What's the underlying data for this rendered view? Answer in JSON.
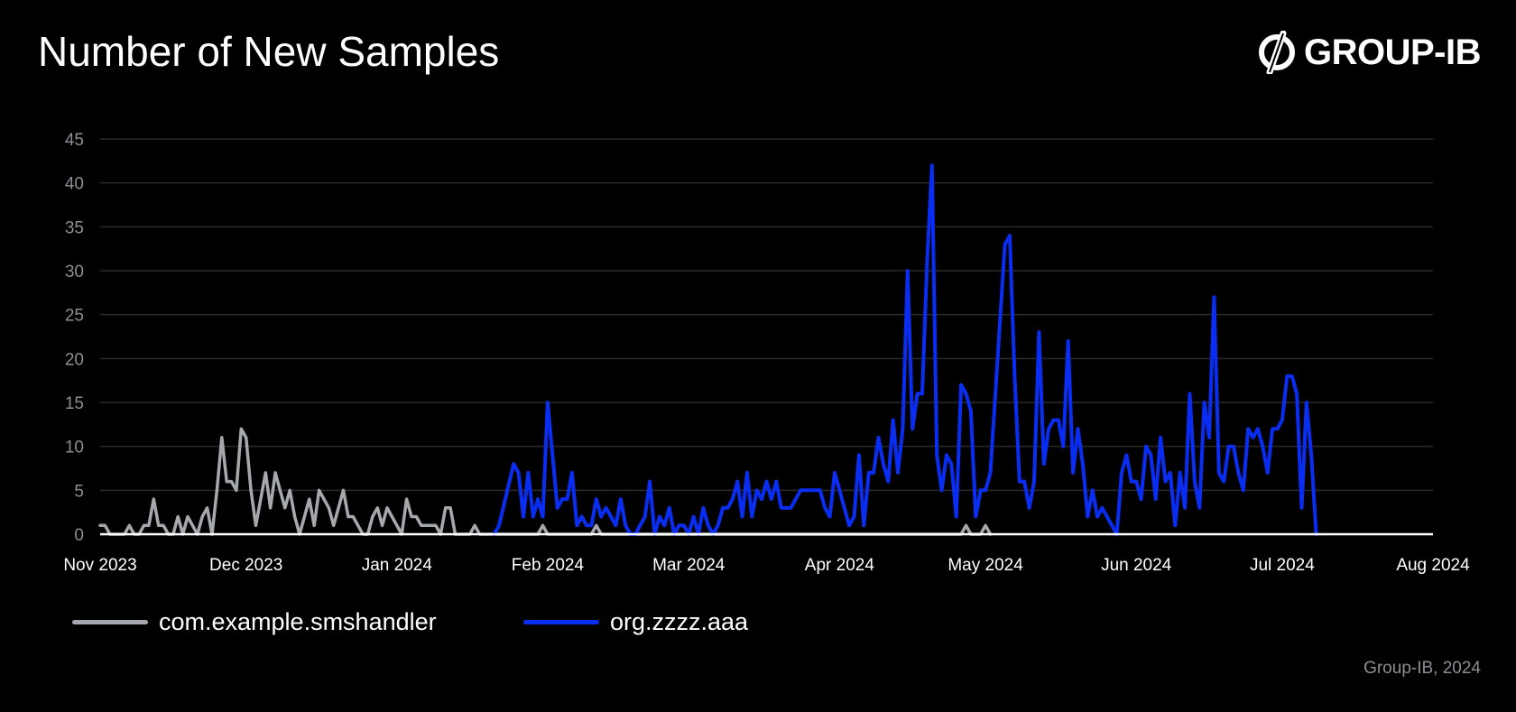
{
  "title": "Number of New Samples",
  "brand": {
    "name": "GROUP-IB",
    "icon": "group-ib-logo-icon"
  },
  "credit": "Group-IB, 2024",
  "colors": {
    "background": "#000000",
    "grid": "#2a2a2a",
    "axis": "#ffffff",
    "tick_text": "#8c8f93"
  },
  "chart_data": {
    "type": "line",
    "title": "Number of New Samples",
    "xlabel": "",
    "ylabel": "",
    "x_start": "2023-11-01",
    "x_end": "2024-08-01",
    "ylim": [
      0,
      45
    ],
    "yticks": [
      0,
      5,
      10,
      15,
      20,
      25,
      30,
      35,
      40,
      45
    ],
    "xticks": [
      {
        "label": "Nov 2023",
        "date": "2023-11-01"
      },
      {
        "label": "Dec 2023",
        "date": "2023-12-01"
      },
      {
        "label": "Jan 2024",
        "date": "2024-01-01"
      },
      {
        "label": "Feb 2024",
        "date": "2024-02-01"
      },
      {
        "label": "Mar 2024",
        "date": "2024-03-01"
      },
      {
        "label": "Apr 2024",
        "date": "2024-04-01"
      },
      {
        "label": "May 2024",
        "date": "2024-05-01"
      },
      {
        "label": "Jun 2024",
        "date": "2024-06-01"
      },
      {
        "label": "Jul 2024",
        "date": "2024-07-01"
      },
      {
        "label": "Aug 2024",
        "date": "2024-08-01"
      }
    ],
    "grid": true,
    "legend": "bottom-left",
    "series": [
      {
        "name": "com.example.smshandler",
        "color": "#a5a8ad",
        "points": [
          [
            "2023-11-01",
            1
          ],
          [
            "2023-11-02",
            1
          ],
          [
            "2023-11-03",
            0
          ],
          [
            "2023-11-06",
            0
          ],
          [
            "2023-11-07",
            1
          ],
          [
            "2023-11-08",
            0
          ],
          [
            "2023-11-09",
            0
          ],
          [
            "2023-11-10",
            1
          ],
          [
            "2023-11-11",
            1
          ],
          [
            "2023-11-12",
            4
          ],
          [
            "2023-11-13",
            1
          ],
          [
            "2023-11-14",
            1
          ],
          [
            "2023-11-15",
            0
          ],
          [
            "2023-11-16",
            0
          ],
          [
            "2023-11-17",
            2
          ],
          [
            "2023-11-18",
            0
          ],
          [
            "2023-11-19",
            2
          ],
          [
            "2023-11-20",
            1
          ],
          [
            "2023-11-21",
            0
          ],
          [
            "2023-11-22",
            2
          ],
          [
            "2023-11-23",
            3
          ],
          [
            "2023-11-24",
            0
          ],
          [
            "2023-11-25",
            5
          ],
          [
            "2023-11-26",
            11
          ],
          [
            "2023-11-27",
            6
          ],
          [
            "2023-11-28",
            6
          ],
          [
            "2023-11-29",
            5
          ],
          [
            "2023-11-30",
            12
          ],
          [
            "2023-12-01",
            11
          ],
          [
            "2023-12-02",
            5
          ],
          [
            "2023-12-03",
            1
          ],
          [
            "2023-12-04",
            4
          ],
          [
            "2023-12-05",
            7
          ],
          [
            "2023-12-06",
            3
          ],
          [
            "2023-12-07",
            7
          ],
          [
            "2023-12-08",
            5
          ],
          [
            "2023-12-09",
            3
          ],
          [
            "2023-12-10",
            5
          ],
          [
            "2023-12-11",
            2
          ],
          [
            "2023-12-12",
            0
          ],
          [
            "2023-12-13",
            2
          ],
          [
            "2023-12-14",
            4
          ],
          [
            "2023-12-15",
            1
          ],
          [
            "2023-12-16",
            5
          ],
          [
            "2023-12-17",
            4
          ],
          [
            "2023-12-18",
            3
          ],
          [
            "2023-12-19",
            1
          ],
          [
            "2023-12-20",
            3
          ],
          [
            "2023-12-21",
            5
          ],
          [
            "2023-12-22",
            2
          ],
          [
            "2023-12-23",
            2
          ],
          [
            "2023-12-24",
            1
          ],
          [
            "2023-12-25",
            0
          ],
          [
            "2023-12-26",
            0
          ],
          [
            "2023-12-27",
            2
          ],
          [
            "2023-12-28",
            3
          ],
          [
            "2023-12-29",
            1
          ],
          [
            "2023-12-30",
            3
          ],
          [
            "2023-12-31",
            2
          ],
          [
            "2024-01-01",
            1
          ],
          [
            "2024-01-02",
            0
          ],
          [
            "2024-01-03",
            4
          ],
          [
            "2024-01-04",
            2
          ],
          [
            "2024-01-05",
            2
          ],
          [
            "2024-01-06",
            1
          ],
          [
            "2024-01-07",
            1
          ],
          [
            "2024-01-08",
            1
          ],
          [
            "2024-01-09",
            1
          ],
          [
            "2024-01-10",
            0
          ],
          [
            "2024-01-11",
            3
          ],
          [
            "2024-01-12",
            3
          ],
          [
            "2024-01-13",
            0
          ],
          [
            "2024-01-15",
            0
          ],
          [
            "2024-01-16",
            0
          ],
          [
            "2024-01-17",
            1
          ],
          [
            "2024-01-18",
            0
          ],
          [
            "2024-01-30",
            0
          ],
          [
            "2024-01-31",
            1
          ],
          [
            "2024-02-01",
            0
          ],
          [
            "2024-02-10",
            0
          ],
          [
            "2024-02-11",
            1
          ],
          [
            "2024-02-12",
            0
          ],
          [
            "2024-04-26",
            0
          ],
          [
            "2024-04-27",
            1
          ],
          [
            "2024-04-28",
            0
          ],
          [
            "2024-04-30",
            0
          ],
          [
            "2024-05-01",
            1
          ],
          [
            "2024-05-02",
            0
          ]
        ]
      },
      {
        "name": "org.zzzz.aaa",
        "color": "#0a2df2",
        "points": [
          [
            "2024-01-21",
            0
          ],
          [
            "2024-01-22",
            1
          ],
          [
            "2024-01-25",
            8
          ],
          [
            "2024-01-26",
            7
          ],
          [
            "2024-01-27",
            2
          ],
          [
            "2024-01-28",
            7
          ],
          [
            "2024-01-29",
            2
          ],
          [
            "2024-01-30",
            4
          ],
          [
            "2024-01-31",
            2
          ],
          [
            "2024-02-01",
            15
          ],
          [
            "2024-02-02",
            9
          ],
          [
            "2024-02-03",
            3
          ],
          [
            "2024-02-04",
            4
          ],
          [
            "2024-02-05",
            4
          ],
          [
            "2024-02-06",
            7
          ],
          [
            "2024-02-07",
            1
          ],
          [
            "2024-02-08",
            2
          ],
          [
            "2024-02-09",
            1
          ],
          [
            "2024-02-10",
            1
          ],
          [
            "2024-02-11",
            4
          ],
          [
            "2024-02-12",
            2
          ],
          [
            "2024-02-13",
            3
          ],
          [
            "2024-02-14",
            2
          ],
          [
            "2024-02-15",
            1
          ],
          [
            "2024-02-16",
            4
          ],
          [
            "2024-02-17",
            1
          ],
          [
            "2024-02-18",
            0
          ],
          [
            "2024-02-19",
            0
          ],
          [
            "2024-02-20",
            1
          ],
          [
            "2024-02-21",
            2
          ],
          [
            "2024-02-22",
            6
          ],
          [
            "2024-02-23",
            0
          ],
          [
            "2024-02-24",
            2
          ],
          [
            "2024-02-25",
            1
          ],
          [
            "2024-02-26",
            3
          ],
          [
            "2024-02-27",
            0
          ],
          [
            "2024-02-28",
            1
          ],
          [
            "2024-02-29",
            1
          ],
          [
            "2024-03-01",
            0
          ],
          [
            "2024-03-02",
            2
          ],
          [
            "2024-03-03",
            0
          ],
          [
            "2024-03-04",
            3
          ],
          [
            "2024-03-05",
            1
          ],
          [
            "2024-03-06",
            0
          ],
          [
            "2024-03-07",
            1
          ],
          [
            "2024-03-08",
            3
          ],
          [
            "2024-03-09",
            3
          ],
          [
            "2024-03-10",
            4
          ],
          [
            "2024-03-11",
            6
          ],
          [
            "2024-03-12",
            2
          ],
          [
            "2024-03-13",
            7
          ],
          [
            "2024-03-14",
            2
          ],
          [
            "2024-03-15",
            5
          ],
          [
            "2024-03-16",
            4
          ],
          [
            "2024-03-17",
            6
          ],
          [
            "2024-03-18",
            4
          ],
          [
            "2024-03-19",
            6
          ],
          [
            "2024-03-20",
            3
          ],
          [
            "2024-03-21",
            3
          ],
          [
            "2024-03-22",
            3
          ],
          [
            "2024-03-23",
            4
          ],
          [
            "2024-03-24",
            5
          ],
          [
            "2024-03-25",
            5
          ],
          [
            "2024-03-26",
            5
          ],
          [
            "2024-03-27",
            5
          ],
          [
            "2024-03-28",
            5
          ],
          [
            "2024-03-29",
            3
          ],
          [
            "2024-03-30",
            2
          ],
          [
            "2024-03-31",
            7
          ],
          [
            "2024-04-01",
            5
          ],
          [
            "2024-04-02",
            3
          ],
          [
            "2024-04-03",
            1
          ],
          [
            "2024-04-04",
            2
          ],
          [
            "2024-04-05",
            9
          ],
          [
            "2024-04-06",
            1
          ],
          [
            "2024-04-07",
            7
          ],
          [
            "2024-04-08",
            7
          ],
          [
            "2024-04-09",
            11
          ],
          [
            "2024-04-10",
            8
          ],
          [
            "2024-04-11",
            6
          ],
          [
            "2024-04-12",
            13
          ],
          [
            "2024-04-13",
            7
          ],
          [
            "2024-04-14",
            12
          ],
          [
            "2024-04-15",
            30
          ],
          [
            "2024-04-16",
            12
          ],
          [
            "2024-04-17",
            16
          ],
          [
            "2024-04-18",
            16
          ],
          [
            "2024-04-19",
            31
          ],
          [
            "2024-04-20",
            42
          ],
          [
            "2024-04-21",
            9
          ],
          [
            "2024-04-22",
            5
          ],
          [
            "2024-04-23",
            9
          ],
          [
            "2024-04-24",
            8
          ],
          [
            "2024-04-25",
            2
          ],
          [
            "2024-04-26",
            17
          ],
          [
            "2024-04-27",
            16
          ],
          [
            "2024-04-28",
            14
          ],
          [
            "2024-04-29",
            2
          ],
          [
            "2024-04-30",
            5
          ],
          [
            "2024-05-01",
            5
          ],
          [
            "2024-05-02",
            7
          ],
          [
            "2024-05-05",
            33
          ],
          [
            "2024-05-06",
            34
          ],
          [
            "2024-05-07",
            18
          ],
          [
            "2024-05-08",
            6
          ],
          [
            "2024-05-09",
            6
          ],
          [
            "2024-05-10",
            3
          ],
          [
            "2024-05-11",
            6
          ],
          [
            "2024-05-12",
            23
          ],
          [
            "2024-05-13",
            8
          ],
          [
            "2024-05-14",
            12
          ],
          [
            "2024-05-15",
            13
          ],
          [
            "2024-05-16",
            13
          ],
          [
            "2024-05-17",
            10
          ],
          [
            "2024-05-18",
            22
          ],
          [
            "2024-05-19",
            7
          ],
          [
            "2024-05-20",
            12
          ],
          [
            "2024-05-21",
            8
          ],
          [
            "2024-05-22",
            2
          ],
          [
            "2024-05-23",
            5
          ],
          [
            "2024-05-24",
            2
          ],
          [
            "2024-05-25",
            3
          ],
          [
            "2024-05-26",
            2
          ],
          [
            "2024-05-27",
            1
          ],
          [
            "2024-05-28",
            0
          ],
          [
            "2024-05-29",
            7
          ],
          [
            "2024-05-30",
            9
          ],
          [
            "2024-05-31",
            6
          ],
          [
            "2024-06-01",
            6
          ],
          [
            "2024-06-02",
            4
          ],
          [
            "2024-06-03",
            10
          ],
          [
            "2024-06-04",
            9
          ],
          [
            "2024-06-05",
            4
          ],
          [
            "2024-06-06",
            11
          ],
          [
            "2024-06-07",
            6
          ],
          [
            "2024-06-08",
            7
          ],
          [
            "2024-06-09",
            1
          ],
          [
            "2024-06-10",
            7
          ],
          [
            "2024-06-11",
            3
          ],
          [
            "2024-06-12",
            16
          ],
          [
            "2024-06-13",
            6
          ],
          [
            "2024-06-14",
            3
          ],
          [
            "2024-06-15",
            15
          ],
          [
            "2024-06-16",
            11
          ],
          [
            "2024-06-17",
            27
          ],
          [
            "2024-06-18",
            7
          ],
          [
            "2024-06-19",
            6
          ],
          [
            "2024-06-20",
            10
          ],
          [
            "2024-06-21",
            10
          ],
          [
            "2024-06-22",
            7
          ],
          [
            "2024-06-23",
            5
          ],
          [
            "2024-06-24",
            12
          ],
          [
            "2024-06-25",
            11
          ],
          [
            "2024-06-26",
            12
          ],
          [
            "2024-06-27",
            10
          ],
          [
            "2024-06-28",
            7
          ],
          [
            "2024-06-29",
            12
          ],
          [
            "2024-06-30",
            12
          ],
          [
            "2024-07-01",
            13
          ],
          [
            "2024-07-02",
            18
          ],
          [
            "2024-07-03",
            18
          ],
          [
            "2024-07-04",
            16
          ],
          [
            "2024-07-05",
            3
          ],
          [
            "2024-07-06",
            15
          ],
          [
            "2024-07-07",
            9
          ],
          [
            "2024-07-08",
            0
          ]
        ]
      }
    ]
  }
}
